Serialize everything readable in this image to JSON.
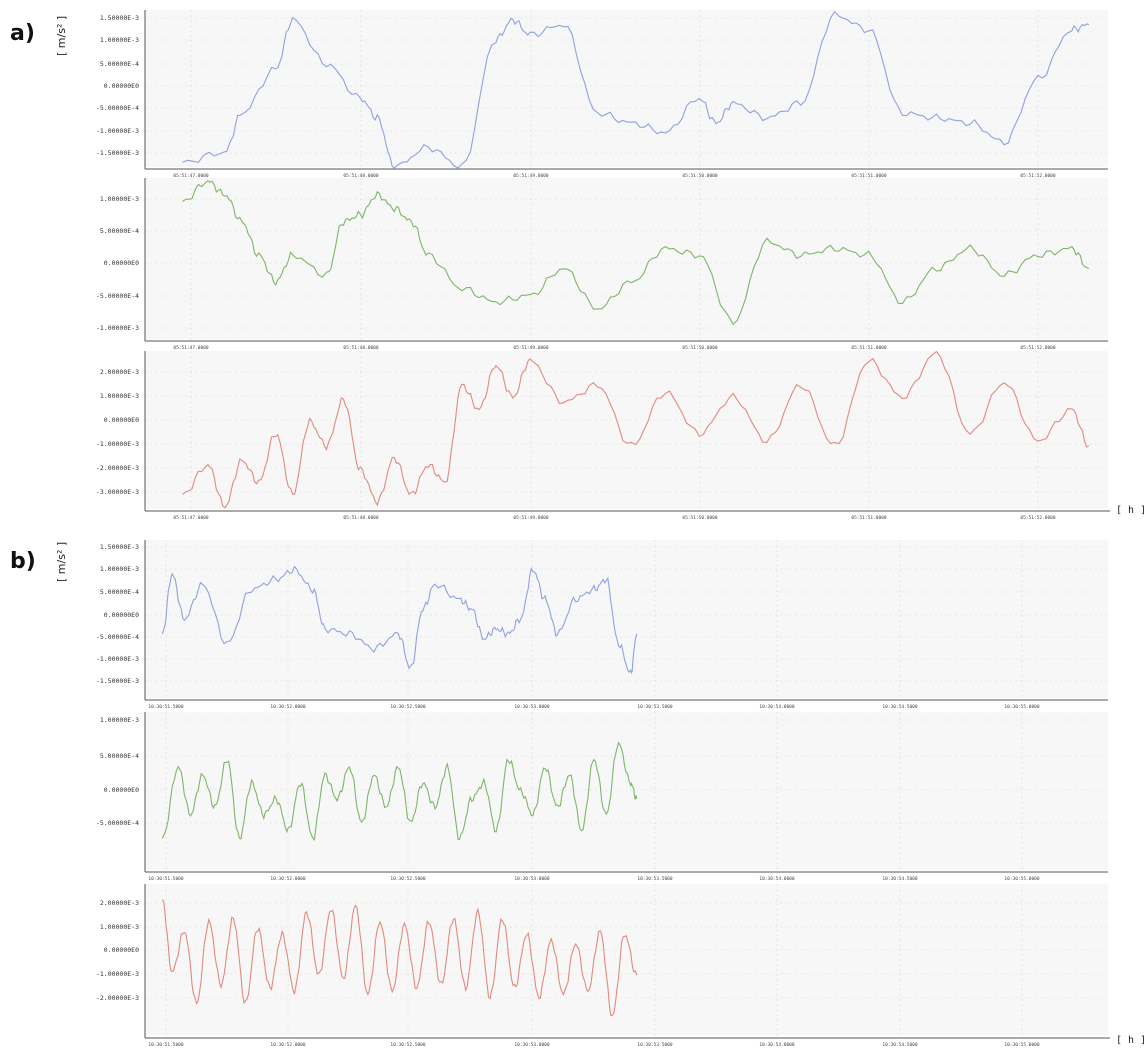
{
  "figure": {
    "panels": [
      {
        "letter": "a)",
        "y_unit": "[ m/s² ]",
        "x_unit": "[ h ]"
      },
      {
        "letter": "b)",
        "y_unit": "[ m/s² ]",
        "x_unit": "[ h ]"
      }
    ]
  },
  "colors": {
    "series1": "#8ea2dd",
    "series2": "#7fb56a",
    "series3": "#e08a80",
    "background": "#f7f7f7",
    "grid": "#d9d9d9",
    "axis": "#555555"
  },
  "chart_data": [
    {
      "type": "line",
      "panel": "a",
      "row": 1,
      "x_ticks": [
        "05:51:47.0000",
        "05:51:48.0000",
        "05:51:49.0000",
        "05:51:50.0000",
        "05:51:51.0000",
        "05:51:52.0000"
      ],
      "y_ticks": [
        "1.50000E-3",
        "1.00000E-3",
        "5.00000E-4",
        "0.00000E0",
        "-5.00000E-4",
        "-1.00000E-3",
        "-1.50000E-3"
      ],
      "ylim": [
        -0.0016,
        0.0016
      ],
      "xlim": [
        -0.05,
        5.3
      ],
      "series": [
        {
          "x": [
            -0.05,
            0.2,
            0.3,
            0.5,
            0.6,
            0.8,
            1.0,
            1.1,
            1.2,
            1.4,
            1.6,
            1.8,
            1.9,
            2.0,
            2.2,
            2.4,
            2.6,
            2.8,
            3.0,
            3.1,
            3.2,
            3.4,
            3.6,
            3.8,
            4.0,
            4.2,
            4.4,
            4.6,
            4.8,
            5.0,
            5.2,
            5.3
          ],
          "y": [
            -0.0015,
            -0.0013,
            -0.0005,
            0.0004,
            0.0014,
            0.0005,
            -0.0002,
            -0.0006,
            -0.0016,
            -0.0012,
            -0.0016,
            0.001,
            0.0014,
            0.0011,
            0.0013,
            -0.0005,
            -0.0007,
            -0.0009,
            -0.0002,
            -0.0007,
            -0.0003,
            -0.0006,
            -0.0003,
            0.0015,
            0.0012,
            -0.0005,
            -0.0006,
            -0.0007,
            -0.0011,
            0.0002,
            0.0012,
            0.0013
          ]
        }
      ]
    },
    {
      "type": "line",
      "panel": "a",
      "row": 2,
      "x_ticks": [
        "05:51:47.0000",
        "05:51:48.0000",
        "05:51:49.0000",
        "05:51:50.0000",
        "05:51:51.0000",
        "05:51:52.0000"
      ],
      "y_ticks": [
        "1.00000E-3",
        "5.00000E-4",
        "0.00000E0",
        "-5.00000E-4",
        "-1.00000E-3"
      ],
      "ylim": [
        -0.00115,
        0.00125
      ],
      "xlim": [
        -0.05,
        5.3
      ],
      "series": [
        {
          "x": [
            -0.05,
            0.1,
            0.2,
            0.3,
            0.4,
            0.5,
            0.6,
            0.8,
            0.9,
            1.0,
            1.1,
            1.2,
            1.3,
            1.4,
            1.6,
            1.8,
            2.0,
            2.2,
            2.4,
            2.6,
            2.8,
            3.0,
            3.2,
            3.4,
            3.6,
            3.8,
            4.0,
            4.2,
            4.4,
            4.6,
            4.8,
            5.0,
            5.2,
            5.3
          ],
          "y": [
            0.0009,
            0.0012,
            0.001,
            0.0006,
            0.0001,
            -0.0003,
            0.0001,
            -0.0002,
            0.0006,
            0.0007,
            0.001,
            0.0008,
            0.0006,
            0.0001,
            -0.0004,
            -0.0006,
            -0.0005,
            -0.0001,
            -0.0007,
            -0.0003,
            0.0002,
            0.0001,
            -0.0009,
            0.0003,
            0.0001,
            0.0002,
            0.0001,
            -0.0006,
            -0.0001,
            0.0002,
            -0.0002,
            0.0001,
            0.0002,
            -0.0001
          ]
        }
      ]
    },
    {
      "type": "line",
      "panel": "a",
      "row": 3,
      "x_ticks": [
        "05:51:47.0000",
        "05:51:48.0000",
        "05:51:49.0000",
        "05:51:50.0000",
        "05:51:51.0000",
        "05:51:52.0000"
      ],
      "y_ticks": [
        "2.00000E-3",
        "1.00000E-3",
        "0.00000E0",
        "-1.00000E-3",
        "-2.00000E-3",
        "-3.00000E-3"
      ],
      "ylim": [
        -0.0036,
        0.0029
      ],
      "xlim": [
        -0.05,
        5.3
      ],
      "series": [
        {
          "x": [
            -0.05,
            0.1,
            0.2,
            0.3,
            0.4,
            0.5,
            0.6,
            0.7,
            0.8,
            0.9,
            1.0,
            1.1,
            1.2,
            1.3,
            1.4,
            1.5,
            1.6,
            1.7,
            1.8,
            1.9,
            2.0,
            2.2,
            2.4,
            2.6,
            2.8,
            3.0,
            3.2,
            3.4,
            3.6,
            3.8,
            4.0,
            4.2,
            4.4,
            4.6,
            4.8,
            5.0,
            5.2,
            5.3
          ],
          "y": [
            -0.003,
            -0.0018,
            -0.0035,
            -0.0016,
            -0.0025,
            -0.0005,
            -0.003,
            0.0,
            -0.001,
            0.0009,
            -0.002,
            -0.0033,
            -0.0015,
            -0.003,
            -0.0018,
            -0.0025,
            0.0015,
            0.0005,
            0.0023,
            0.001,
            0.0025,
            0.0008,
            0.0015,
            -0.001,
            0.0012,
            -0.0005,
            0.001,
            -0.0008,
            0.0015,
            -0.001,
            0.0025,
            0.001,
            0.0028,
            -0.0005,
            0.0016,
            -0.0008,
            0.0005,
            -0.001
          ]
        }
      ]
    },
    {
      "type": "line",
      "panel": "b",
      "row": 1,
      "x_ticks": [
        "10:30:51.5000",
        "10:30:52.0000",
        "10:30:52.5000",
        "10:30:53.0000",
        "10:30:53.5000",
        "10:30:54.0000",
        "10:30:54.5000",
        "10:30:55.0000"
      ],
      "y_ticks": [
        "1.50000E-3",
        "1.00000E-3",
        "5.00000E-4",
        "0.00000E0",
        "-5.00000E-4",
        "-1.00000E-3",
        "-1.50000E-3"
      ],
      "ylim": [
        -0.0016,
        0.0016
      ],
      "xlim": [
        -0.03,
        3.85
      ],
      "series": [
        {
          "x": [
            -0.03,
            0.05,
            0.15,
            0.3,
            0.5,
            0.7,
            0.9,
            1.05,
            1.2,
            1.3,
            1.5,
            1.7,
            1.9,
            2.0,
            2.1,
            2.2,
            2.4,
            2.5,
            2.6,
            2.7,
            2.8,
            2.9,
            3.0,
            3.1,
            3.2,
            3.35,
            3.5,
            3.6,
            3.7,
            3.8,
            3.85
          ],
          "y": [
            -0.0003,
            0.0009,
            0.0,
            0.0007,
            -0.0005,
            0.0006,
            0.0008,
            0.001,
            0.0006,
            -0.0002,
            -0.0003,
            -0.0006,
            -0.0003,
            -0.001,
            0.0002,
            0.0007,
            0.0004,
            0.0002,
            -0.0004,
            -0.0002,
            -0.0003,
            0.0,
            0.001,
            0.0004,
            -0.0003,
            0.0004,
            0.0006,
            0.0008,
            -0.0005,
            -0.0011,
            -0.0003
          ]
        }
      ]
    },
    {
      "type": "line",
      "panel": "b",
      "row": 2,
      "x_ticks": [
        "10:30:51.5000",
        "10:30:52.0000",
        "10:30:52.5000",
        "10:30:53.0000",
        "10:30:53.5000",
        "10:30:54.0000",
        "10:30:54.5000",
        "10:30:55.0000"
      ],
      "y_ticks": [
        "1.00000E-3",
        "5.00000E-4",
        "0.00000E0",
        "-5.00000E-4"
      ],
      "ylim": [
        -0.0009,
        0.0011
      ],
      "xlim": [
        -0.03,
        3.85
      ],
      "series": [
        {
          "x": [
            -0.03,
            0.1,
            0.2,
            0.3,
            0.4,
            0.5,
            0.6,
            0.7,
            0.8,
            0.9,
            1.0,
            1.1,
            1.2,
            1.3,
            1.4,
            1.5,
            1.6,
            1.7,
            1.8,
            1.9,
            2.0,
            2.1,
            2.2,
            2.3,
            2.4,
            2.5,
            2.6,
            2.7,
            2.8,
            2.9,
            3.0,
            3.1,
            3.2,
            3.3,
            3.4,
            3.5,
            3.6,
            3.7,
            3.8,
            3.85
          ],
          "y": [
            -0.0005,
            0.0004,
            -0.0002,
            0.0003,
            -0.0001,
            0.0005,
            -0.0005,
            0.0002,
            -0.0002,
            0.0,
            -0.0004,
            0.0002,
            -0.0005,
            0.0003,
            0.0,
            0.0004,
            -0.0003,
            0.0003,
            -0.0001,
            0.0004,
            -0.0003,
            0.0002,
            -0.0001,
            0.0004,
            -0.0005,
            0.0,
            0.0002,
            -0.0004,
            0.0005,
            0.0001,
            -0.0002,
            0.0004,
            -0.0001,
            0.0003,
            -0.0004,
            0.0005,
            -0.0002,
            0.0007,
            0.0002,
            0.0
          ]
        }
      ]
    },
    {
      "type": "line",
      "panel": "b",
      "row": 3,
      "x_ticks": [
        "10:30:51.5000",
        "10:30:52.0000",
        "10:30:52.5000",
        "10:30:53.0000",
        "10:30:53.5000",
        "10:30:54.0000",
        "10:30:54.5000",
        "10:30:55.0000"
      ],
      "y_ticks": [
        "2.00000E-3",
        "1.00000E-3",
        "0.00000E0",
        "-1.00000E-3",
        "-2.00000E-3"
      ],
      "ylim": [
        -0.0024,
        0.0024
      ],
      "xlim": [
        -0.03,
        3.85
      ],
      "series": [
        {
          "x": [
            -0.03,
            0.05,
            0.15,
            0.25,
            0.35,
            0.45,
            0.55,
            0.65,
            0.75,
            0.85,
            0.95,
            1.05,
            1.15,
            1.25,
            1.35,
            1.45,
            1.55,
            1.65,
            1.75,
            1.85,
            1.95,
            2.05,
            2.15,
            2.25,
            2.35,
            2.45,
            2.55,
            2.65,
            2.75,
            2.85,
            2.95,
            3.05,
            3.15,
            3.25,
            3.35,
            3.45,
            3.55,
            3.65,
            3.75,
            3.85
          ],
          "y": [
            0.0019,
            -0.0004,
            0.0009,
            -0.0014,
            0.0012,
            -0.0008,
            0.0013,
            -0.0014,
            0.001,
            -0.0009,
            0.0008,
            -0.001,
            0.0015,
            -0.0005,
            0.0016,
            -0.0006,
            0.0017,
            -0.0011,
            0.0012,
            -0.001,
            0.0011,
            -0.0009,
            0.0012,
            -0.0008,
            0.0013,
            -0.0009,
            0.0015,
            -0.0012,
            0.0013,
            -0.0009,
            0.0008,
            -0.0012,
            0.0006,
            -0.0011,
            0.0005,
            -0.001,
            0.0009,
            -0.0018,
            0.0008,
            -0.0005
          ]
        }
      ]
    }
  ]
}
